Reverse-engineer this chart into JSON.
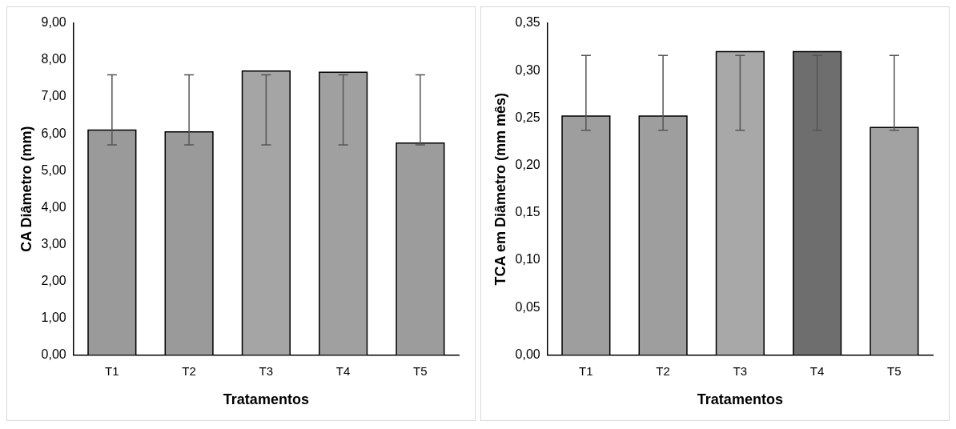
{
  "chart_data": [
    {
      "type": "bar",
      "xlabel": "Tratamentos",
      "ylabel": "CA Diâmetro (mm)",
      "categories": [
        "T1",
        "T2",
        "T3",
        "T4",
        "T5"
      ],
      "values": [
        6.1,
        6.05,
        7.7,
        7.67,
        5.75
      ],
      "colors": [
        "#9a9a9a",
        "#9a9a9a",
        "#a5a5a5",
        "#a0a0a0",
        "#9c9c9c"
      ],
      "errors": [
        [
          5.7,
          7.6
        ],
        [
          5.7,
          7.6
        ],
        [
          5.7,
          7.6
        ],
        [
          5.7,
          7.6
        ],
        [
          5.7,
          7.6
        ]
      ],
      "ylim": [
        0,
        9
      ],
      "yticks": [
        {
          "value": 0,
          "label": "0,00"
        },
        {
          "value": 1,
          "label": "1,00"
        },
        {
          "value": 2,
          "label": "2,00"
        },
        {
          "value": 3,
          "label": "3,00"
        },
        {
          "value": 4,
          "label": "4,00"
        },
        {
          "value": 5,
          "label": "5,00"
        },
        {
          "value": 6,
          "label": "6,00"
        },
        {
          "value": 7,
          "label": "7,00"
        },
        {
          "value": 8,
          "label": "8,00"
        },
        {
          "value": 9,
          "label": "9,00"
        }
      ],
      "grid": false,
      "legend": false
    },
    {
      "type": "bar",
      "xlabel": "Tratamentos",
      "ylabel": "TCA em Diâmetro (mm mês)",
      "categories": [
        "T1",
        "T2",
        "T3",
        "T4",
        "T5"
      ],
      "values": [
        0.252,
        0.252,
        0.32,
        0.32,
        0.24
      ],
      "colors": [
        "#9e9e9e",
        "#9e9e9e",
        "#a8a8a8",
        "#6e6e6e",
        "#a2a2a2"
      ],
      "errors": [
        [
          0.237,
          0.316
        ],
        [
          0.237,
          0.316
        ],
        [
          0.237,
          0.316
        ],
        [
          0.237,
          0.316
        ],
        [
          0.237,
          0.316
        ]
      ],
      "ylim": [
        0,
        0.35
      ],
      "yticks": [
        {
          "value": 0,
          "label": "0,00"
        },
        {
          "value": 0.05,
          "label": "0,05"
        },
        {
          "value": 0.1,
          "label": "0,10"
        },
        {
          "value": 0.15,
          "label": "0,15"
        },
        {
          "value": 0.2,
          "label": "0,20"
        },
        {
          "value": 0.25,
          "label": "0,25"
        },
        {
          "value": 0.3,
          "label": "0,30"
        },
        {
          "value": 0.35,
          "label": "0,35"
        }
      ],
      "grid": false,
      "legend": false
    }
  ]
}
